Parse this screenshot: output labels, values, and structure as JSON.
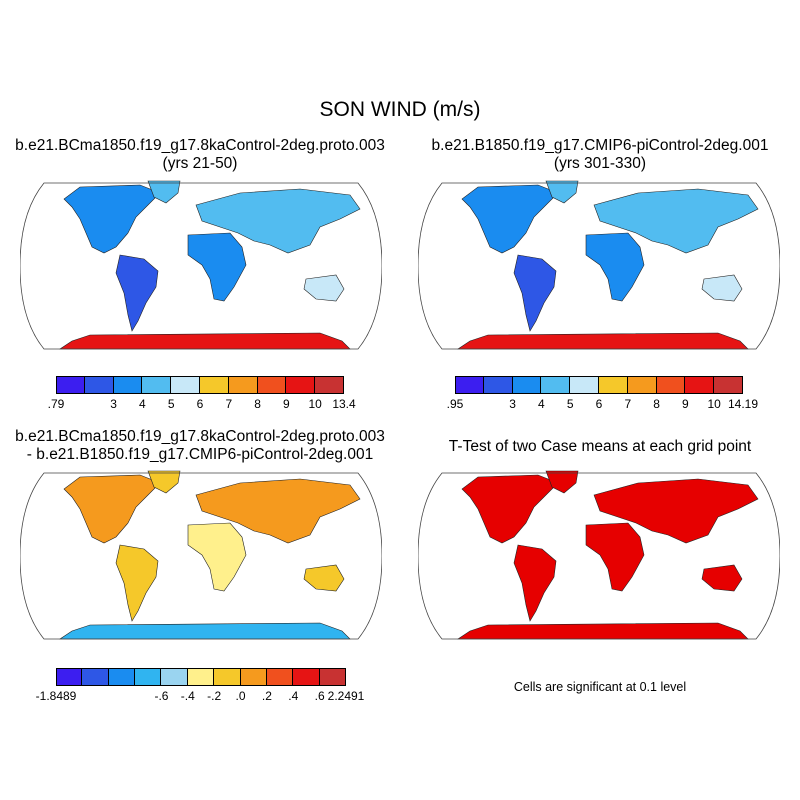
{
  "title": "SON WIND (m/s)",
  "panels": [
    {
      "id": "case1",
      "title_lines": [
        "b.e21.BCma1850.f19_g17.8kaControl-2deg.proto.003",
        "(yrs 21-50)"
      ],
      "colorbar": {
        "colors": [
          "#3c1ef0",
          "#2e57e6",
          "#1a8cf0",
          "#52bcf0",
          "#c8e8f8",
          "#f5c82a",
          "#f59a1e",
          "#f0501e",
          "#e61414",
          "#c83232"
        ],
        "labels": [
          ".79",
          "3",
          "4",
          "5",
          "6",
          "7",
          "8",
          "9",
          "10",
          "13.4"
        ]
      }
    },
    {
      "id": "case2",
      "title_lines": [
        "b.e21.B1850.f19_g17.CMIP6-piControl-2deg.001",
        "(yrs 301-330)"
      ],
      "colorbar": {
        "colors": [
          "#3c1ef0",
          "#2e57e6",
          "#1a8cf0",
          "#52bcf0",
          "#c8e8f8",
          "#f5c82a",
          "#f59a1e",
          "#f0501e",
          "#e61414",
          "#c83232"
        ],
        "labels": [
          ".95",
          "3",
          "4",
          "5",
          "6",
          "7",
          "8",
          "9",
          "10",
          "14.19"
        ]
      }
    },
    {
      "id": "difference",
      "title_lines": [
        "b.e21.BCma1850.f19_g17.8kaControl-2deg.proto.003",
        "- b.e21.B1850.f19_g17.CMIP6-piControl-2deg.001"
      ],
      "colorbar": {
        "colors": [
          "#3c1ef0",
          "#2e57e6",
          "#1a8cf0",
          "#30b4f0",
          "#9ad4f0",
          "#fff08c",
          "#f5c82a",
          "#f59a1e",
          "#f0501e",
          "#e61414",
          "#c83232"
        ],
        "labels": [
          "-1.8489",
          "-.6",
          "-.4",
          "-.2",
          ".0",
          ".2",
          ".4",
          ".6",
          "2.2491"
        ]
      }
    },
    {
      "id": "ttest",
      "title_lines": [
        "T-Test of two Case means at each grid point"
      ],
      "note": "Cells are significant at 0.1 level",
      "significant_color": "#e60000"
    }
  ]
}
